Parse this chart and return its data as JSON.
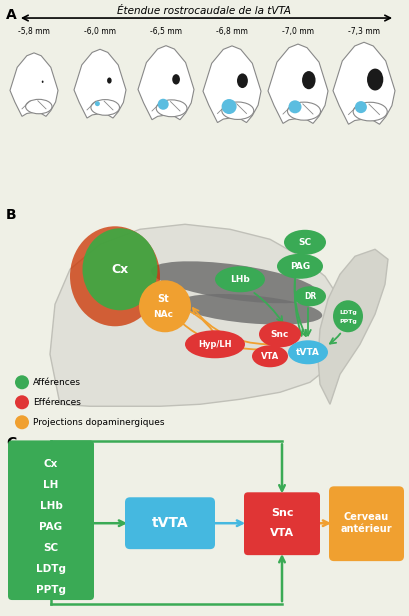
{
  "bg_color": "#eff0e6",
  "title_A": "Étendue rostrocaudale de la tVTA",
  "distances": [
    "-5,8 mm",
    "-6,0 mm",
    "-6,5 mm",
    "-6,8 mm",
    "-7,0 mm",
    "-7,3 mm"
  ],
  "blue_dot_color": "#5bbde0",
  "green_node_color": "#3aaa55",
  "red_node_color": "#e03535",
  "orange_color": "#f0a030",
  "cyan_color": "#45b8e0",
  "dark_red_color": "#c03000",
  "legend_afferences": "Afférences",
  "legend_efferences": "Efférences",
  "legend_dopamine": "Projections dopaminergiques",
  "node_labels_C_left": [
    "Cx",
    "LH",
    "LHb",
    "PAG",
    "SC",
    "LDTg",
    "PPTg"
  ]
}
